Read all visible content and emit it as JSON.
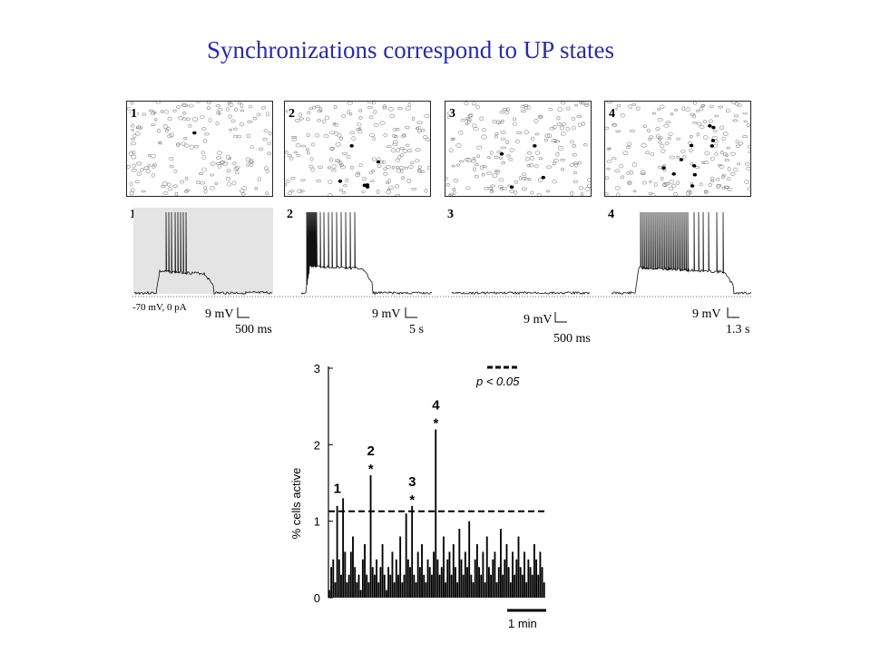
{
  "slide_title": "Synchronizations correspond to UP states",
  "map_panels": [
    {
      "label": "1",
      "active_cells": 1
    },
    {
      "label": "2",
      "active_cells": 6
    },
    {
      "label": "3",
      "active_cells": 4
    },
    {
      "label": "4",
      "active_cells": 11
    }
  ],
  "traces": [
    {
      "label": "1",
      "scale_voltage": "9  mV",
      "scale_time": "500 ms",
      "highlighted": true
    },
    {
      "label": "2",
      "scale_voltage": "9  mV",
      "scale_time": "5 s",
      "highlighted": false
    },
    {
      "label": "3",
      "scale_voltage": "9 mV",
      "scale_time": "500 ms",
      "highlighted": false
    },
    {
      "label": "4",
      "scale_voltage": "9  mV",
      "scale_time": "1.3 s",
      "highlighted": false
    }
  ],
  "baseline_label": "-70 mV, 0 pA",
  "chart_data": {
    "type": "bar",
    "ylabel": "% cells active",
    "ylim": [
      0,
      3
    ],
    "yticks": [
      "0",
      "1",
      "2",
      "3"
    ],
    "threshold": 1.13,
    "legend_label": "p < 0.05",
    "scale_bar_label": "1 min",
    "values": [
      0.1,
      0.4,
      0.5,
      0.2,
      1.2,
      0.5,
      0.3,
      1.3,
      0.6,
      0.2,
      0.3,
      0.6,
      0.8,
      0.4,
      0.2,
      0.3,
      0.1,
      0.5,
      0.7,
      0.3,
      0.2,
      1.6,
      0.4,
      0.3,
      0.5,
      0.2,
      0.4,
      0.7,
      0.3,
      0.1,
      0.4,
      0.3,
      0.6,
      0.2,
      0.5,
      0.3,
      0.8,
      0.2,
      0.3,
      1.1,
      0.5,
      0.4,
      1.2,
      0.3,
      0.2,
      0.6,
      0.4,
      0.7,
      0.3,
      0.2,
      0.5,
      0.4,
      0.3,
      0.6,
      2.2,
      0.5,
      0.3,
      0.4,
      0.8,
      0.2,
      0.5,
      0.6,
      0.3,
      0.7,
      0.4,
      0.2,
      0.9,
      0.5,
      0.3,
      0.6,
      0.4,
      1.0,
      0.3,
      0.2,
      0.5,
      0.7,
      0.4,
      0.3,
      0.6,
      0.2,
      0.8,
      0.4,
      0.3,
      0.5,
      0.6,
      0.2,
      0.4,
      0.9,
      0.3,
      0.5,
      0.7,
      0.4,
      0.2,
      0.6,
      0.3,
      0.5,
      0.8,
      0.4,
      0.3,
      0.6,
      0.2,
      0.5,
      0.4,
      0.3,
      0.7,
      0.5,
      0.3,
      0.6,
      0.4,
      0.2
    ],
    "annotations": [
      {
        "label": "1",
        "star": "",
        "value": 1.3
      },
      {
        "label": "2",
        "star": "*",
        "value": 1.6
      },
      {
        "label": "3",
        "star": "*",
        "value": 1.2
      },
      {
        "label": "4",
        "star": "*",
        "value": 2.2
      }
    ]
  }
}
